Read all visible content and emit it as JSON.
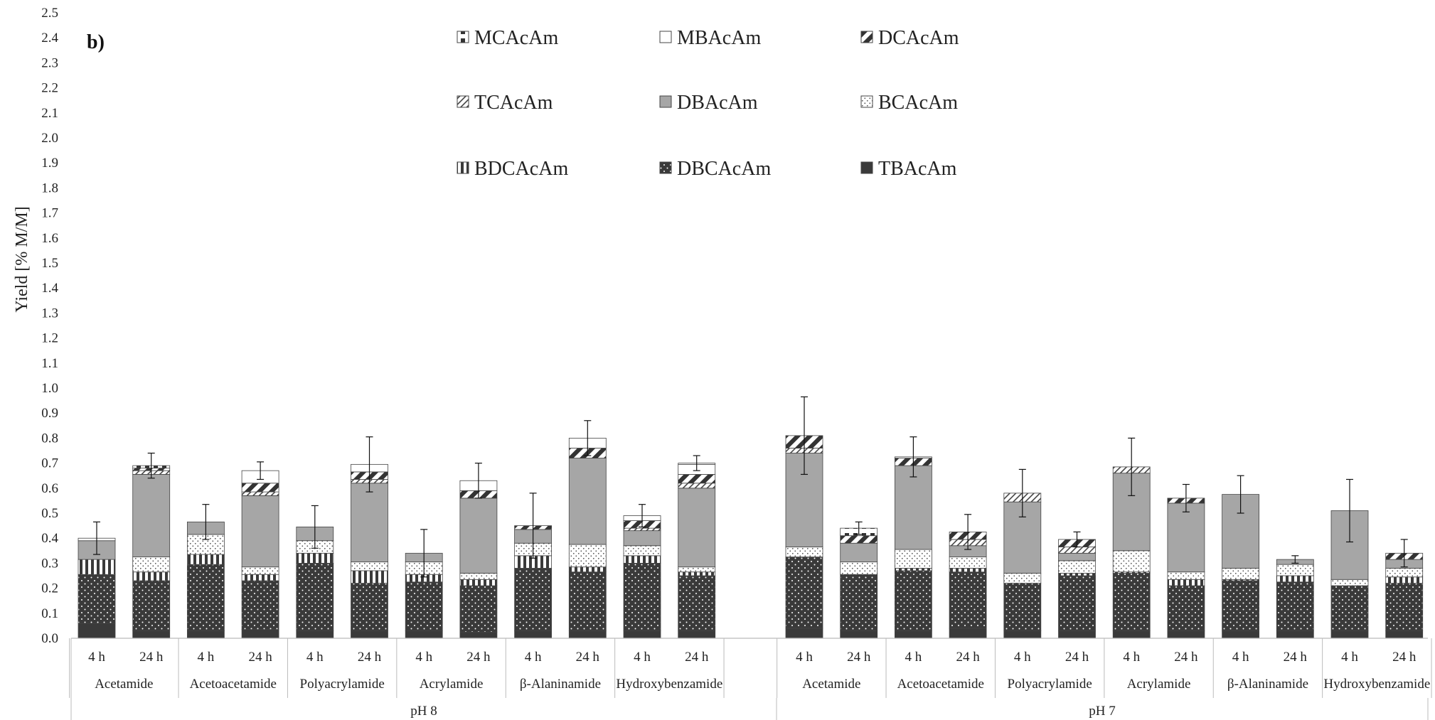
{
  "chart_data": {
    "type": "bar",
    "stacked": true,
    "panel_label": "b)",
    "ylabel": "Yield [% M/M]",
    "xlabel": "",
    "ylim": [
      0,
      2.5
    ],
    "ytick_step": 0.1,
    "grid": false,
    "legend_position": "top",
    "subcategory_labels": [
      "4 h",
      "24 h"
    ],
    "groups": [
      {
        "label": "pH 8",
        "compounds": [
          {
            "label": "Acetamide",
            "bars": [
              {
                "values": [
                  0.06,
                  0.195,
                  0.06,
                  0.0,
                  0.075,
                  0.0,
                  0.0,
                  0.0,
                  0.01
                ],
                "error": 0.065
              },
              {
                "values": [
                  0.03,
                  0.2,
                  0.035,
                  0.06,
                  0.33,
                  0.015,
                  0.01,
                  0.0,
                  0.01
                ],
                "error": 0.05
              }
            ]
          },
          {
            "label": "Acetoacetamide",
            "bars": [
              {
                "values": [
                  0.03,
                  0.265,
                  0.04,
                  0.08,
                  0.05,
                  0.0,
                  0.0,
                  0.0,
                  0.0
                ],
                "error": 0.07
              },
              {
                "values": [
                  0.035,
                  0.195,
                  0.025,
                  0.03,
                  0.285,
                  0.015,
                  0.035,
                  0.05,
                  0.0
                ],
                "error": 0.035
              }
            ]
          },
          {
            "label": "Polyacrylamide",
            "bars": [
              {
                "values": [
                  0.03,
                  0.27,
                  0.04,
                  0.05,
                  0.055,
                  0.0,
                  0.0,
                  0.0,
                  0.0
                ],
                "error": 0.085
              },
              {
                "values": [
                  0.03,
                  0.19,
                  0.05,
                  0.035,
                  0.315,
                  0.015,
                  0.03,
                  0.03,
                  0.0
                ],
                "error": 0.11
              }
            ]
          },
          {
            "label": "Acrylamide",
            "bars": [
              {
                "values": [
                  0.03,
                  0.195,
                  0.03,
                  0.05,
                  0.035,
                  0.0,
                  0.0,
                  0.0,
                  0.0
                ],
                "error": 0.095
              },
              {
                "values": [
                  0.025,
                  0.185,
                  0.025,
                  0.025,
                  0.3,
                  0.0,
                  0.03,
                  0.04,
                  0.0
                ],
                "error": 0.07
              }
            ]
          },
          {
            "label": "β-Alaninamide",
            "bars": [
              {
                "values": [
                  0.03,
                  0.25,
                  0.05,
                  0.05,
                  0.055,
                  0.0,
                  0.015,
                  0.0,
                  0.0
                ],
                "error": 0.13
              },
              {
                "values": [
                  0.03,
                  0.235,
                  0.02,
                  0.09,
                  0.345,
                  0.0,
                  0.04,
                  0.04,
                  0.0
                ],
                "error": 0.07
              }
            ]
          },
          {
            "label": "Hydroxybenzamide",
            "bars": [
              {
                "values": [
                  0.03,
                  0.27,
                  0.03,
                  0.04,
                  0.06,
                  0.01,
                  0.03,
                  0.02,
                  0.0
                ],
                "error": 0.045
              },
              {
                "values": [
                  0.03,
                  0.22,
                  0.015,
                  0.02,
                  0.315,
                  0.02,
                  0.035,
                  0.04,
                  0.005
                ],
                "error": 0.03
              }
            ]
          }
        ]
      },
      {
        "label": "pH 7",
        "compounds": [
          {
            "label": "Acetamide",
            "bars": [
              {
                "values": [
                  0.04,
                  0.285,
                  0.0,
                  0.04,
                  0.375,
                  0.02,
                  0.05,
                  0.0,
                  0.0
                ],
                "error": 0.155
              },
              {
                "values": [
                  0.03,
                  0.225,
                  0.0,
                  0.05,
                  0.075,
                  0.0,
                  0.03,
                  0.0,
                  0.03
                ],
                "error": 0.025
              }
            ]
          },
          {
            "label": "Acetoacetamide",
            "bars": [
              {
                "values": [
                  0.03,
                  0.24,
                  0.01,
                  0.075,
                  0.335,
                  0.0,
                  0.03,
                  0.005,
                  0.0
                ],
                "error": 0.08
              },
              {
                "values": [
                  0.04,
                  0.225,
                  0.015,
                  0.045,
                  0.045,
                  0.025,
                  0.03,
                  0.0,
                  0.0
                ],
                "error": 0.07
              }
            ]
          },
          {
            "label": "Polyacrylamide",
            "bars": [
              {
                "values": [
                  0.03,
                  0.19,
                  0.0,
                  0.04,
                  0.285,
                  0.035,
                  0.0,
                  0.0,
                  0.0
                ],
                "error": 0.095
              },
              {
                "values": [
                  0.03,
                  0.22,
                  0.01,
                  0.05,
                  0.03,
                  0.025,
                  0.03,
                  0.0,
                  0.0
                ],
                "error": 0.03
              }
            ]
          },
          {
            "label": "Acrylamide",
            "bars": [
              {
                "values": [
                  0.03,
                  0.23,
                  0.005,
                  0.085,
                  0.31,
                  0.025,
                  0.0,
                  0.0,
                  0.0
                ],
                "error": 0.115
              },
              {
                "values": [
                  0.03,
                  0.18,
                  0.025,
                  0.03,
                  0.275,
                  0.0,
                  0.02,
                  0.0,
                  0.0
                ],
                "error": 0.055
              }
            ]
          },
          {
            "label": "β-Alaninamide",
            "bars": [
              {
                "values": [
                  0.03,
                  0.2,
                  0.005,
                  0.045,
                  0.295,
                  0.0,
                  0.0,
                  0.0,
                  0.0
                ],
                "error": 0.075
              },
              {
                "values": [
                  0.03,
                  0.195,
                  0.025,
                  0.045,
                  0.02,
                  0.0,
                  0.0,
                  0.0,
                  0.0
                ],
                "error": 0.015
              }
            ]
          },
          {
            "label": "Hydroxybenzamide",
            "bars": [
              {
                "values": [
                  0.03,
                  0.18,
                  0.0,
                  0.025,
                  0.275,
                  0.0,
                  0.0,
                  0.0,
                  0.0
                ],
                "error": 0.125
              },
              {
                "values": [
                  0.03,
                  0.19,
                  0.025,
                  0.035,
                  0.035,
                  0.0,
                  0.025,
                  0.0,
                  0.0
                ],
                "error": 0.055
              }
            ]
          }
        ]
      }
    ],
    "series": [
      {
        "name": "TBAcAm",
        "pattern": "solid-dark"
      },
      {
        "name": "DBCAcAm",
        "pattern": "dark-dots"
      },
      {
        "name": "BDCAcAm",
        "pattern": "vertical-stripes"
      },
      {
        "name": "BCAcAm",
        "pattern": "light-dots"
      },
      {
        "name": "DBAcAm",
        "pattern": "solid-gray"
      },
      {
        "name": "TCAcAm",
        "pattern": "thin-diagonal"
      },
      {
        "name": "DCAcAm",
        "pattern": "thick-diagonal"
      },
      {
        "name": "MBAcAm",
        "pattern": "white"
      },
      {
        "name": "MCAcAm",
        "pattern": "half-filled"
      }
    ],
    "legend_order": [
      "MCAcAm",
      "MBAcAm",
      "DCAcAm",
      "TCAcAm",
      "DBAcAm",
      "BCAcAm",
      "BDCAcAm",
      "DBCAcAm",
      "TBAcAm"
    ],
    "colors": {
      "dark": "#3a3a3a",
      "gray": "#a6a6a6",
      "stroke": "#444444",
      "white": "#ffffff"
    }
  }
}
